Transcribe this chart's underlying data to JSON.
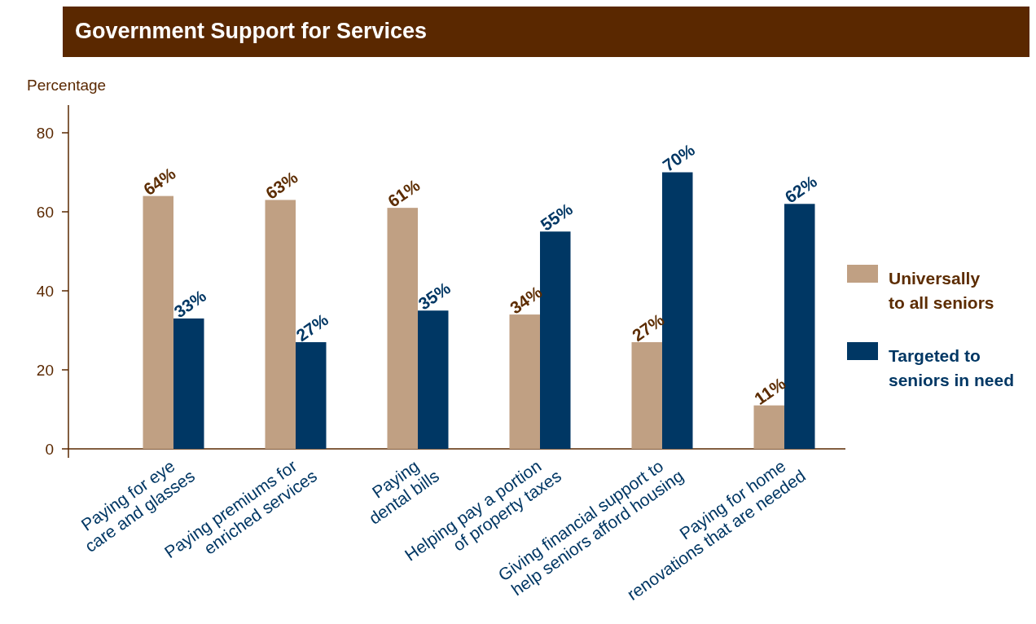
{
  "chart_data": {
    "type": "bar",
    "title": "Government Support for Services",
    "ylabel": "Percentage",
    "categories": [
      "Paying for eye care and glasses",
      "Paying premiums for enriched services",
      "Paying dental bills",
      "Helping pay a portion of property taxes",
      "Giving financial support to help seniors afford housing",
      "Paying for home renovations that are needed"
    ],
    "series": [
      {
        "name": "Universally to all seniors",
        "color": "#c0a083",
        "values": [
          64,
          63,
          61,
          34,
          27,
          11
        ],
        "value_labels": [
          "64%",
          "63%",
          "61%",
          "34%",
          "27%",
          "11%"
        ]
      },
      {
        "name": "Targeted to seniors in need",
        "color": "#003764",
        "values": [
          33,
          27,
          35,
          55,
          70,
          62
        ],
        "value_labels": [
          "33%",
          "27%",
          "35%",
          "55%",
          "70%",
          "62%"
        ]
      }
    ],
    "ylim": [
      0,
      87
    ],
    "yticks": [
      0,
      20,
      40,
      60,
      80
    ],
    "grid": false,
    "legend": "right"
  }
}
